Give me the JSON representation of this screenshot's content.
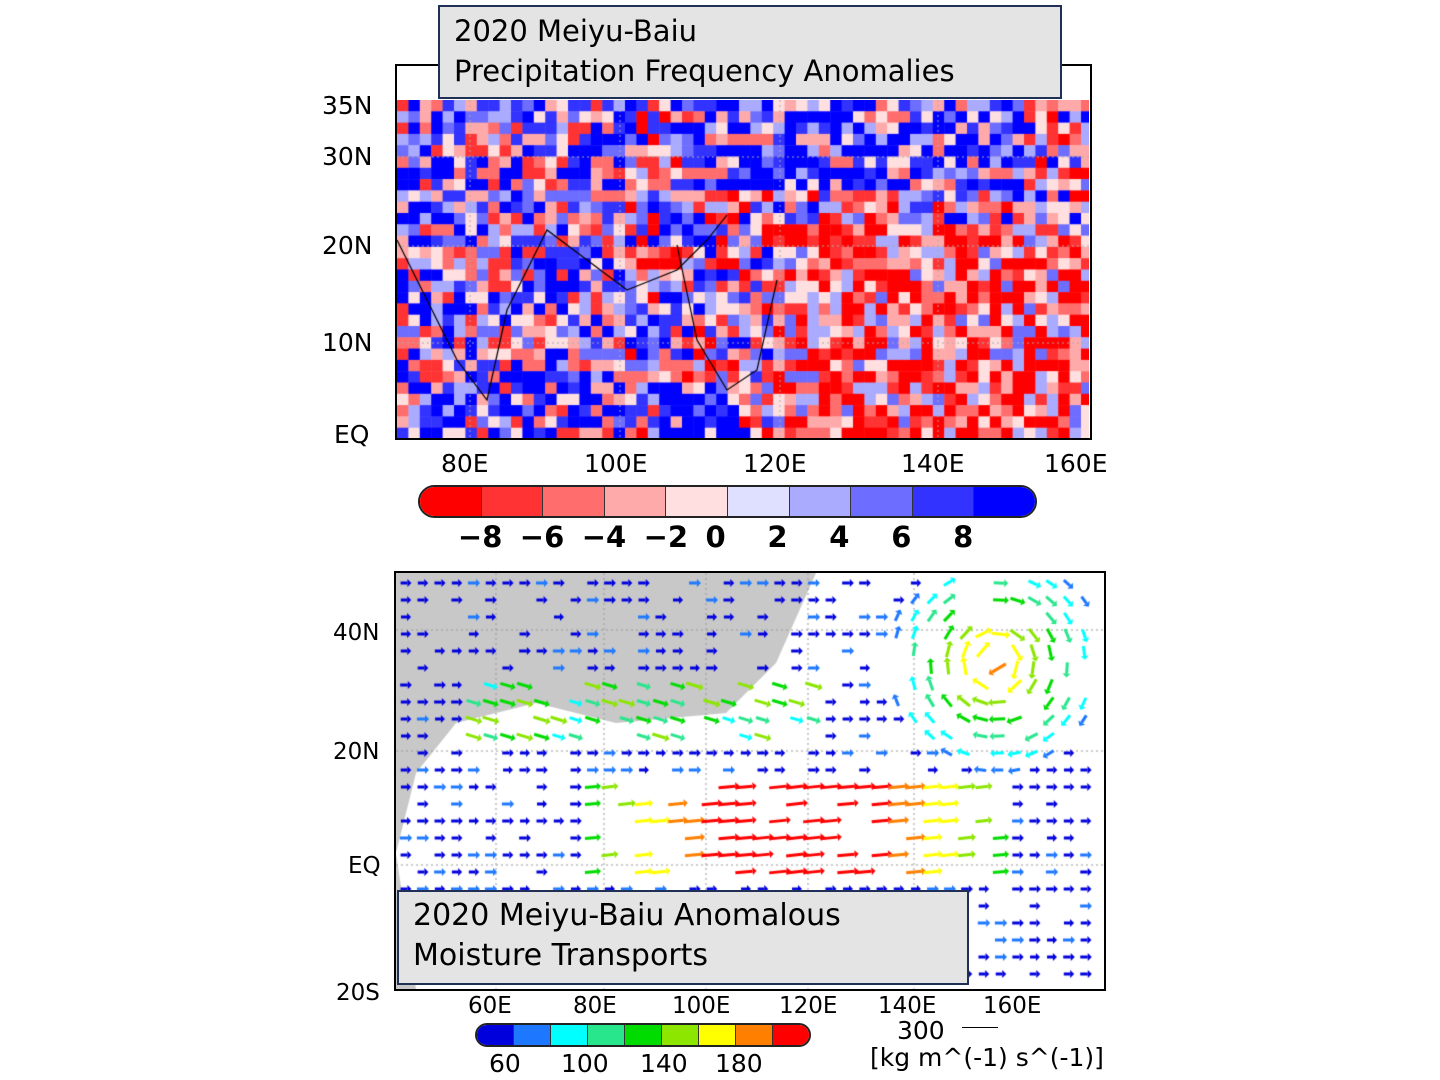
{
  "panel1": {
    "title_line1": "2020 Meiyu-Baiu",
    "title_line2": "Precipitation Frequency Anomalies",
    "lat_labels": [
      "35N",
      "30N",
      "20N",
      "10N",
      "EQ"
    ],
    "lon_labels": [
      "80E",
      "100E",
      "120E",
      "140E",
      "160E"
    ],
    "colorbar": {
      "colors": [
        "#ff0000",
        "#ff3333",
        "#ff6d6d",
        "#ffaaaa",
        "#ffdfdf",
        "#dfdfff",
        "#aaaaff",
        "#6d6dff",
        "#3333ff",
        "#0000ff"
      ],
      "labels": [
        "−8",
        "−6",
        "−4",
        "−2",
        "0",
        "2",
        "4",
        "6",
        "8"
      ]
    }
  },
  "panel2": {
    "title_line1": "2020 Meiyu-Baiu Anomalous",
    "title_line2": "Moisture Transports",
    "lat_labels": [
      "40N",
      "20N",
      "EQ",
      "20S"
    ],
    "lon_labels": [
      "60E",
      "80E",
      "100E",
      "120E",
      "140E",
      "160E"
    ],
    "colorbar": {
      "colors": [
        "#0000dd",
        "#1e78ff",
        "#00ffff",
        "#28e68c",
        "#00dc00",
        "#8ce600",
        "#ffff00",
        "#ff8000",
        "#ff0000"
      ],
      "labels": [
        "60",
        "100",
        "140",
        "180"
      ]
    },
    "reference_vector": "300",
    "units": "[kg m^(-1) s^(-1)]",
    "land_color": "#c8c8c8"
  }
}
